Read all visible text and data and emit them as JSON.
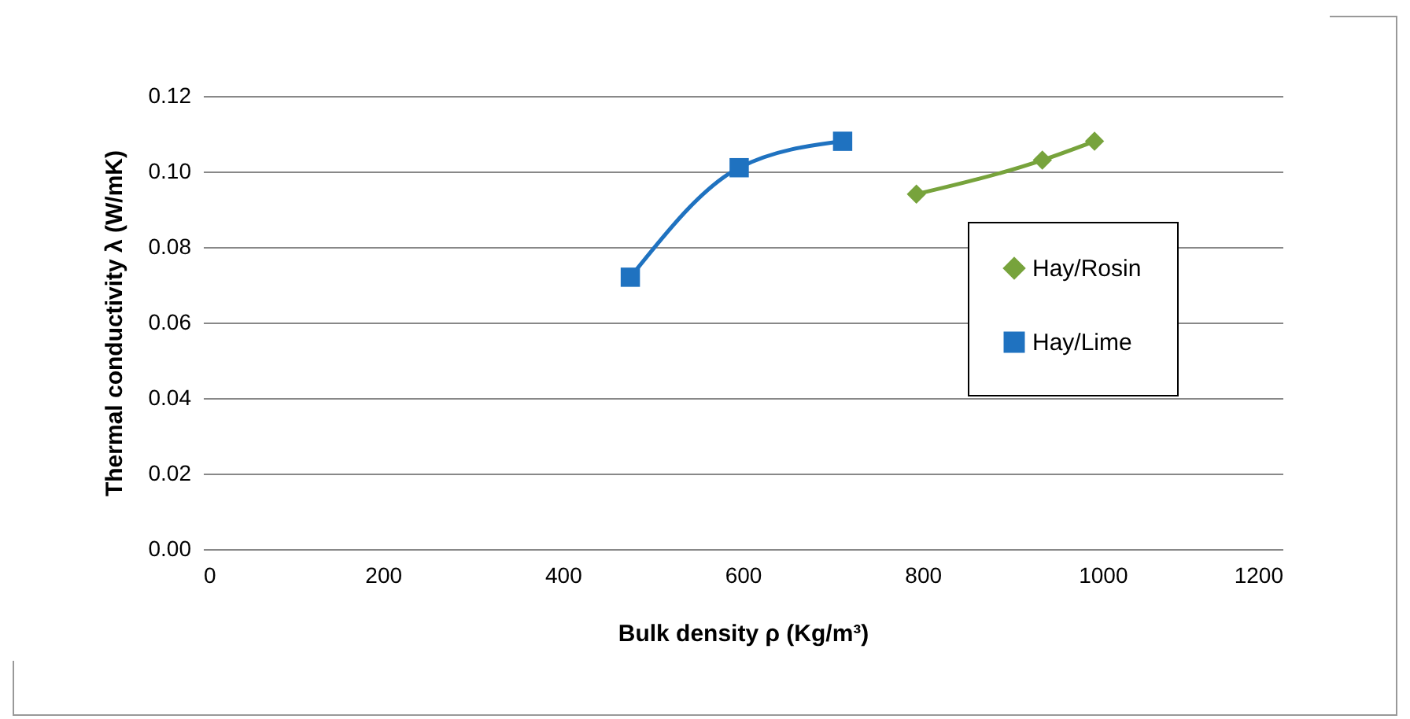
{
  "chart_data": {
    "type": "line",
    "xlabel": "Bulk density ρ (Kg/m³)",
    "ylabel": "Thermal conductivity λ (W/mK)",
    "series": [
      {
        "name": "Hay/Rosin",
        "color": "#77a33c",
        "marker": "diamond",
        "x": [
          793,
          933,
          991
        ],
        "values": [
          0.094,
          0.103,
          0.108
        ]
      },
      {
        "name": "Hay/Lime",
        "color": "#1f72c0",
        "marker": "square",
        "x": [
          475,
          596,
          711
        ],
        "values": [
          0.072,
          0.101,
          0.108
        ]
      }
    ],
    "xlim": [
      0,
      1200
    ],
    "xticks": [
      0,
      200,
      400,
      600,
      800,
      1000,
      1200
    ],
    "ylim": [
      0,
      0.12
    ],
    "yticks": [
      {
        "value": 0,
        "label": "0.00"
      },
      {
        "value": 0.02,
        "label": "0.02"
      },
      {
        "value": 0.04,
        "label": "0.04"
      },
      {
        "value": 0.06,
        "label": "0.06"
      },
      {
        "value": 0.08,
        "label": "0.08"
      },
      {
        "value": 0.1,
        "label": "0.10"
      },
      {
        "value": 0.12,
        "label": "0.12"
      }
    ],
    "grid": "y",
    "legend": "right"
  }
}
